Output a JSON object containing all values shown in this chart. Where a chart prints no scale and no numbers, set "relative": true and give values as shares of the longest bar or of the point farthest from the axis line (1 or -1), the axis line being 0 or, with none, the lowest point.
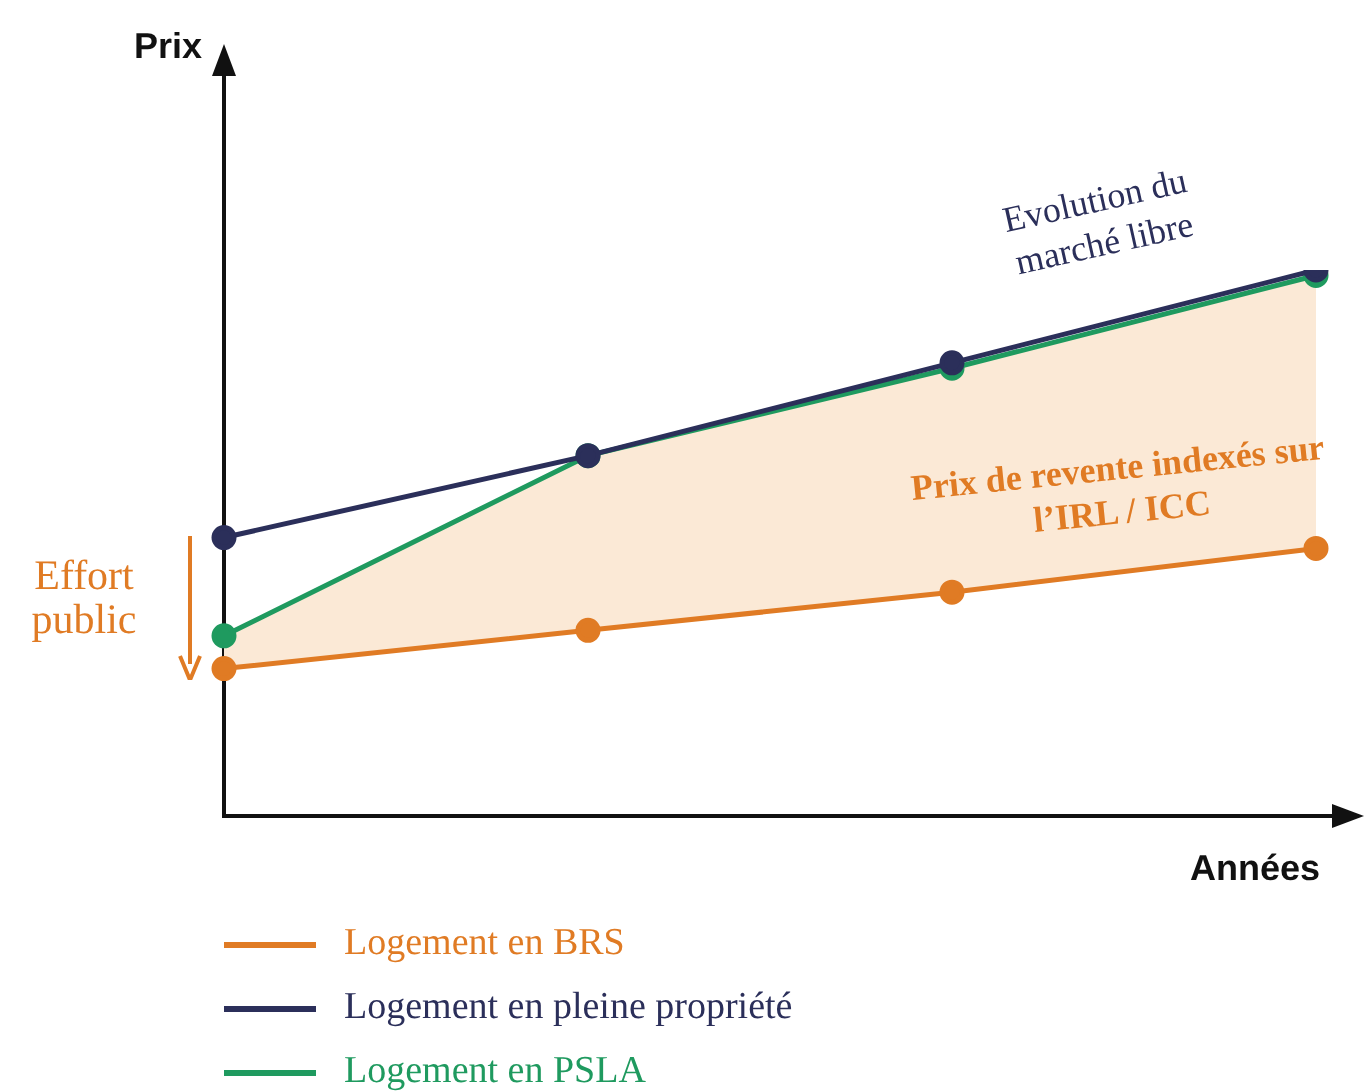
{
  "chart_data": {
    "type": "line",
    "relative": true,
    "xlabel": "Années",
    "categories": [
      null,
      null,
      null,
      null
    ],
    "series": [
      {
        "name": "Logement en BRS",
        "color": "#e07b24",
        "values": [
          0.27,
          0.34,
          0.41,
          0.49
        ]
      },
      {
        "name": "Logement en pleine propriété",
        "color": "#2b2f5a",
        "values": [
          0.51,
          0.66,
          0.83,
          1
        ]
      },
      {
        "name": "Logement en PSLA",
        "color": "#1f9a5f",
        "values": [
          0.33,
          0.66,
          0.82,
          0.99
        ],
        "lower": [
          0.27,
          0.34,
          0.41,
          0.49
        ],
        "upper": [
          0.33,
          0.66,
          0.82,
          0.99
        ]
      }
    ],
    "annotations": [
      "Evolution du marché libre",
      "Prix de revente indexés sur l’IRL / ICC",
      "Effort public",
      "Prix"
    ],
    "marker": "circle",
    "line_style": "solid",
    "legend": "bottom",
    "grid": false
  }
}
